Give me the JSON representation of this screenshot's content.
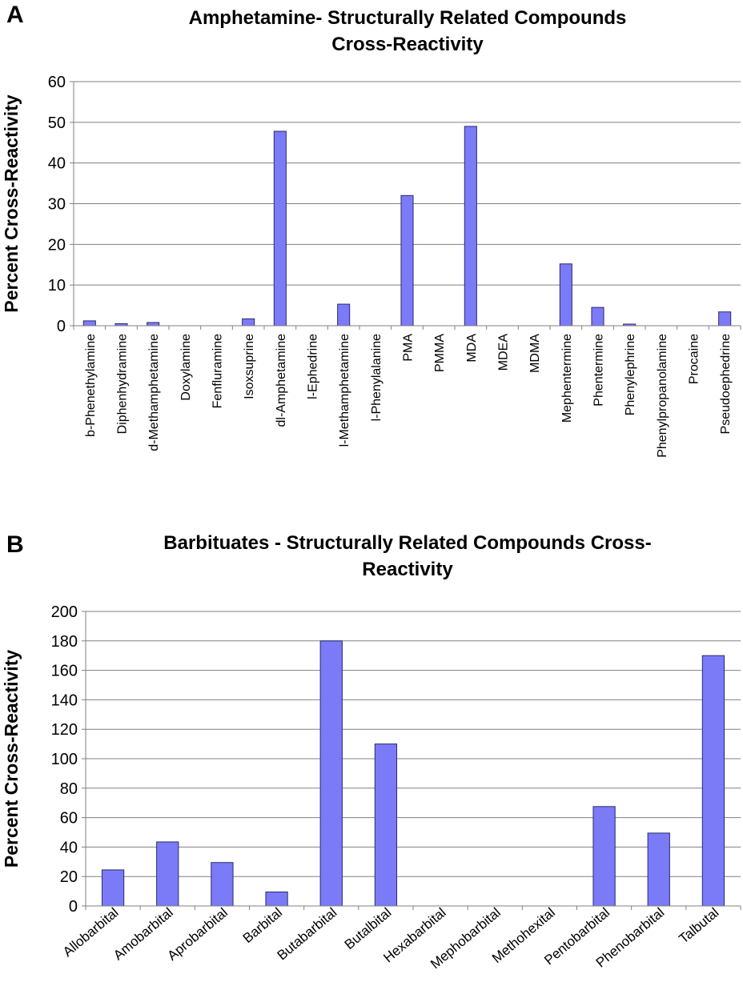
{
  "panels": [
    {
      "letter": "A",
      "title_lines": [
        "Amphetamine- Structurally Related Compounds",
        "Cross-Reactivity"
      ]
    },
    {
      "letter": "B",
      "title_lines": [
        "Barbituates - Structurally Related Compounds Cross-",
        "Reactivity"
      ]
    }
  ],
  "colors": {
    "bar_fill": "#7b7bf7",
    "bar_stroke": "#2a2a70",
    "grid": "#808080",
    "axis": "#808080"
  },
  "chart_data": [
    {
      "type": "bar",
      "title": "Amphetamine- Structurally Related Compounds Cross-Reactivity",
      "ylabel": "Percent Cross-Reactivity",
      "xlabel": "",
      "ylim": [
        0,
        60
      ],
      "yticks": [
        0,
        10,
        20,
        30,
        40,
        50,
        60
      ],
      "grid": true,
      "legend": "none",
      "categories": [
        "b-Phenethylamine",
        "Diphenhydramine",
        "d-Methamphetamine",
        "Doxylamine",
        "Fenfluramine",
        "Isoxsuprine",
        "dl-Amphetamine",
        "l-Ephedrine",
        "l-Methamphetamine",
        "l-Phenylalanine",
        "PMA",
        "PMMA",
        "MDA",
        "MDEA",
        "MDMA",
        "Mephentermine",
        "Phentermine",
        "Phenylephrine",
        "Phenylpropanolamine",
        "Procaine",
        "Pseudoephedrine"
      ],
      "values": [
        1.2,
        0.5,
        0.8,
        0,
        0,
        1.7,
        47.8,
        0,
        5.3,
        0,
        32,
        0,
        49,
        0,
        0,
        15.2,
        4.5,
        0.4,
        0,
        0,
        3.4
      ]
    },
    {
      "type": "bar",
      "title": "Barbituates - Structurally Related Compounds Cross-Reactivity",
      "ylabel": "Percent Cross-Reactivity",
      "xlabel": "",
      "ylim": [
        0,
        200
      ],
      "yticks": [
        0,
        20,
        40,
        60,
        80,
        100,
        120,
        140,
        160,
        180,
        200
      ],
      "grid": true,
      "legend": "none",
      "categories": [
        "Allobarbital",
        "Amobarbital",
        "Aprobarbital",
        "Barbital",
        "Butabarbital",
        "Butalbital",
        "Hexabarbital",
        "Mephobarbital",
        "Methohexital",
        "Pentobarbital",
        "Phenobarbital",
        "Talbutal"
      ],
      "values": [
        24.5,
        43.5,
        29.5,
        9.5,
        180,
        110,
        0,
        0,
        0,
        67.5,
        49.5,
        170
      ]
    }
  ]
}
